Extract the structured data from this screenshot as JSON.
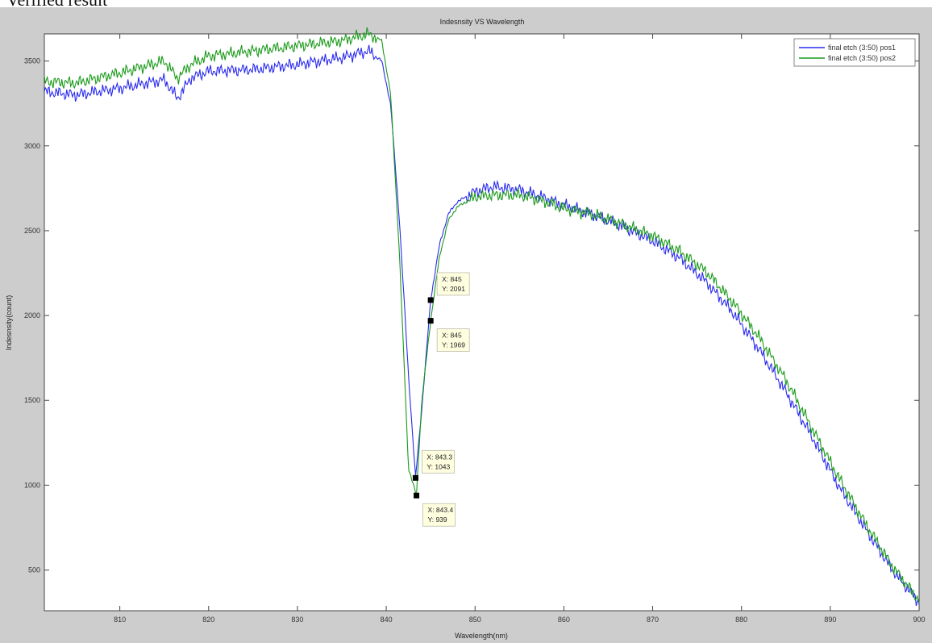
{
  "page": {
    "cropped_caption": "Verified result"
  },
  "chart_data": {
    "type": "line",
    "title": "Indesnsity VS Wavelength",
    "xlabel": "Wavelength(nm)",
    "ylabel": "Indesnsity(count)",
    "xlim": [
      801.5,
      900
    ],
    "ylim": [
      260,
      3660
    ],
    "xticks": [
      810,
      820,
      830,
      840,
      850,
      860,
      870,
      880,
      890,
      900
    ],
    "yticks": [
      500,
      1000,
      1500,
      2000,
      2500,
      3000,
      3500
    ],
    "grid": false,
    "legend_position": "top-right",
    "series": [
      {
        "name": "final etch (3:50) pos1",
        "color": "#2a2af0",
        "x": [
          801.5,
          805,
          810,
          815,
          816.5,
          818,
          820,
          825,
          830,
          835,
          838,
          839.5,
          840.5,
          841.5,
          842.5,
          843.3,
          844,
          845,
          846,
          847,
          848,
          850,
          852,
          855,
          858,
          860,
          863,
          866,
          870,
          873,
          876,
          879,
          882,
          885,
          888,
          891,
          894,
          897,
          900
        ],
        "y": [
          3320,
          3300,
          3340,
          3390,
          3280,
          3400,
          3440,
          3450,
          3480,
          3520,
          3560,
          3500,
          3240,
          2550,
          1650,
          1043,
          1450,
          2091,
          2420,
          2600,
          2670,
          2730,
          2760,
          2740,
          2690,
          2650,
          2600,
          2540,
          2440,
          2340,
          2200,
          2020,
          1800,
          1550,
          1280,
          990,
          740,
          500,
          310
        ]
      },
      {
        "name": "final etch (3:50) pos2",
        "color": "#1a9a1a",
        "x": [
          801.5,
          805,
          810,
          815,
          816.5,
          818,
          820,
          825,
          830,
          835,
          838,
          839.5,
          840.5,
          841.5,
          842.5,
          843.4,
          844,
          845,
          846,
          847,
          848,
          850,
          852,
          855,
          858,
          860,
          863,
          866,
          870,
          873,
          876,
          879,
          882,
          885,
          888,
          891,
          894,
          897,
          900
        ],
        "y": [
          3380,
          3370,
          3430,
          3500,
          3400,
          3480,
          3530,
          3560,
          3590,
          3620,
          3660,
          3620,
          3300,
          2350,
          1100,
          939,
          1500,
          1969,
          2350,
          2560,
          2640,
          2700,
          2710,
          2710,
          2670,
          2630,
          2600,
          2550,
          2470,
          2380,
          2260,
          2080,
          1870,
          1620,
          1330,
          1040,
          770,
          520,
          320
        ]
      }
    ],
    "annotations": [
      {
        "x_label": "X: 845",
        "y_label": "Y: 2091",
        "x": 845,
        "y": 2091,
        "series": 0
      },
      {
        "x_label": "X: 845",
        "y_label": "Y: 1969",
        "x": 845,
        "y": 1969,
        "series": 1
      },
      {
        "x_label": "X: 843.3",
        "y_label": "Y: 1043",
        "x": 843.3,
        "y": 1043,
        "series": 0
      },
      {
        "x_label": "X: 843.4",
        "y_label": "Y: 939",
        "x": 843.4,
        "y": 939,
        "series": 1
      }
    ]
  }
}
